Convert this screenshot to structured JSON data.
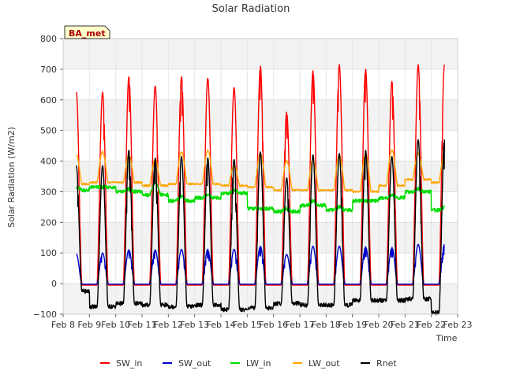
{
  "chart_data": {
    "type": "line",
    "title": "Solar Radiation",
    "xlabel": "Time",
    "ylabel": "Solar Radiation (W/m2)",
    "badge": "BA_met",
    "grid": true,
    "legend_placement": "bottom-center",
    "xlim": [
      8,
      23
    ],
    "ylim": [
      -100,
      800
    ],
    "x_ticks": [
      {
        "v": 8,
        "label": "Feb 8"
      },
      {
        "v": 9,
        "label": "Feb 9"
      },
      {
        "v": 10,
        "label": "Feb 10"
      },
      {
        "v": 11,
        "label": "Feb 11"
      },
      {
        "v": 12,
        "label": "Feb 12"
      },
      {
        "v": 13,
        "label": "Feb 13"
      },
      {
        "v": 14,
        "label": "Feb 14"
      },
      {
        "v": 15,
        "label": "Feb 15"
      },
      {
        "v": 16,
        "label": "Feb 16"
      },
      {
        "v": 17,
        "label": "Feb 17"
      },
      {
        "v": 18,
        "label": "Feb 18"
      },
      {
        "v": 19,
        "label": "Feb 19"
      },
      {
        "v": 20,
        "label": "Feb 20"
      },
      {
        "v": 21,
        "label": "Feb 21"
      },
      {
        "v": 22,
        "label": "Feb 22"
      },
      {
        "v": 23,
        "label": "Feb 23"
      }
    ],
    "y_ticks": [
      {
        "v": -100,
        "label": "−100"
      },
      {
        "v": 0,
        "label": "0"
      },
      {
        "v": 100,
        "label": "100"
      },
      {
        "v": 200,
        "label": "200"
      },
      {
        "v": 300,
        "label": "300"
      },
      {
        "v": 400,
        "label": "400"
      },
      {
        "v": 500,
        "label": "500"
      },
      {
        "v": 600,
        "label": "600"
      },
      {
        "v": 700,
        "label": "700"
      },
      {
        "v": 800,
        "label": "800"
      }
    ],
    "days": [
      8.5,
      9.5,
      10.5,
      11.5,
      12.5,
      13.5,
      14.5,
      15.5,
      16.5,
      17.5,
      18.5,
      19.5,
      20.5,
      21.5,
      22.5
    ],
    "series": [
      {
        "name": "SW_in",
        "color": "#ff0000",
        "kind": "sw_in",
        "start": 8.5,
        "end": 22.5,
        "night": -5,
        "peaks": [
          625,
          625,
          675,
          645,
          675,
          670,
          640,
          710,
          560,
          695,
          715,
          700,
          660,
          715
        ]
      },
      {
        "name": "SW_out",
        "color": "#0000cc",
        "kind": "sw_out",
        "start": 8.5,
        "end": 22.5,
        "night": -2,
        "peaks": [
          97,
          100,
          110,
          110,
          112,
          112,
          112,
          122,
          95,
          122,
          122,
          120,
          118,
          128
        ]
      },
      {
        "name": "LW_in",
        "color": "#00dd00",
        "kind": "lw",
        "start": 8.5,
        "end": 22.5,
        "base": [
          305,
          315,
          300,
          290,
          270,
          280,
          295,
          245,
          235,
          255,
          240,
          270,
          280,
          300,
          240
        ],
        "day_bump": [
          10,
          0,
          10,
          40,
          15,
          10,
          10,
          0,
          10,
          15,
          10,
          0,
          10,
          10
        ]
      },
      {
        "name": "LW_out",
        "color": "#ffa500",
        "kind": "lw_out",
        "start": 8.5,
        "end": 22.5,
        "night": [
          325,
          330,
          330,
          320,
          325,
          325,
          320,
          315,
          305,
          305,
          305,
          300,
          320,
          340,
          330
        ],
        "peaks": [
          420,
          430,
          420,
          405,
          430,
          435,
          385,
          425,
          400,
          405,
          420,
          425,
          435,
          425
        ]
      },
      {
        "name": "Rnet",
        "color": "#000000",
        "kind": "rnet",
        "start": 8.5,
        "end": 22.5,
        "night": [
          -25,
          -75,
          -65,
          -70,
          -75,
          -70,
          -85,
          -80,
          -65,
          -70,
          -70,
          -55,
          -55,
          -50,
          -95
        ],
        "peaks": [
          385,
          385,
          435,
          410,
          415,
          410,
          405,
          430,
          345,
          420,
          425,
          435,
          415,
          470
        ]
      }
    ]
  }
}
